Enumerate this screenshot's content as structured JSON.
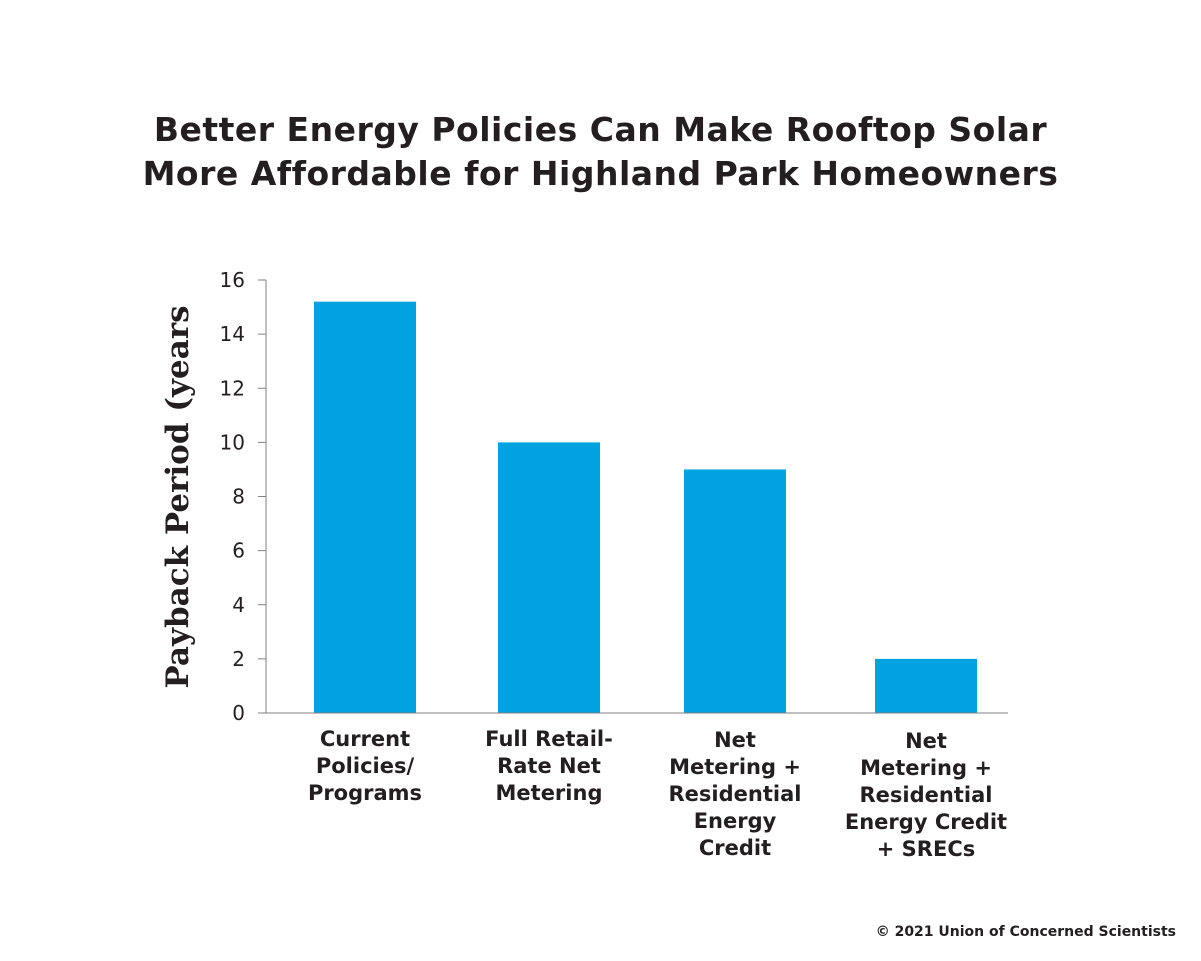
{
  "title_lines": [
    "Better Energy Policies Can Make Rooftop Solar",
    "More Affordable for Highland Park Homeowners"
  ],
  "footer": "© 2021 Union of Concerned Scientists",
  "colors": {
    "bar": "#00a3e0",
    "axis": "#808080",
    "text": "#231f20"
  },
  "chart_data": {
    "type": "bar",
    "title": "Better Energy Policies Can Make Rooftop Solar More Affordable for Highland Park Homeowners",
    "xlabel": "",
    "ylabel": "Payback Period (years",
    "ylim": [
      0,
      16
    ],
    "yticks": [
      0,
      2,
      4,
      6,
      8,
      10,
      12,
      14,
      16
    ],
    "grid": false,
    "categories": [
      "Current Policies/ Programs",
      "Full Retail-Rate Net Metering",
      "Net Metering + Residential Energy Credit",
      "Net Metering + Residential Energy Credit + SRECs"
    ],
    "category_lines": [
      [
        "Current",
        "Policies/",
        "Programs"
      ],
      [
        "Full Retail-",
        "Rate Net",
        "Metering"
      ],
      [
        "Net",
        "Metering +",
        "Residential",
        "Energy",
        "Credit"
      ],
      [
        "Net",
        "Metering +",
        "Residential",
        "Energy Credit",
        "+ SRECs"
      ]
    ],
    "values": [
      15.2,
      10.0,
      9.0,
      2.0
    ]
  }
}
